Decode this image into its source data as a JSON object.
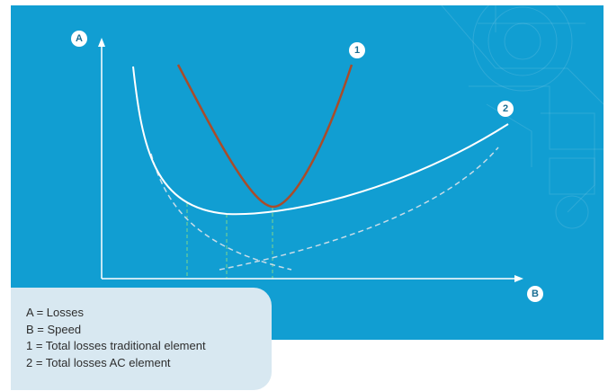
{
  "diagram": {
    "axis_y_marker": "A",
    "axis_x_marker": "B",
    "curve_traditional_marker": "1",
    "curve_ac_marker": "2"
  },
  "legend": {
    "items": [
      "A = Losses",
      "B = Speed",
      "1 = Total losses traditional element",
      "2 = Total losses AC element"
    ]
  },
  "colors": {
    "background": "#119ed2",
    "axis": "#ffffff",
    "traditional_curve": "#a94c2a",
    "ac_curve": "#ffffff",
    "component_curves": "#c8dce8",
    "guide_lines": "#7ed58c",
    "legend_box": "#d8e8f1"
  }
}
